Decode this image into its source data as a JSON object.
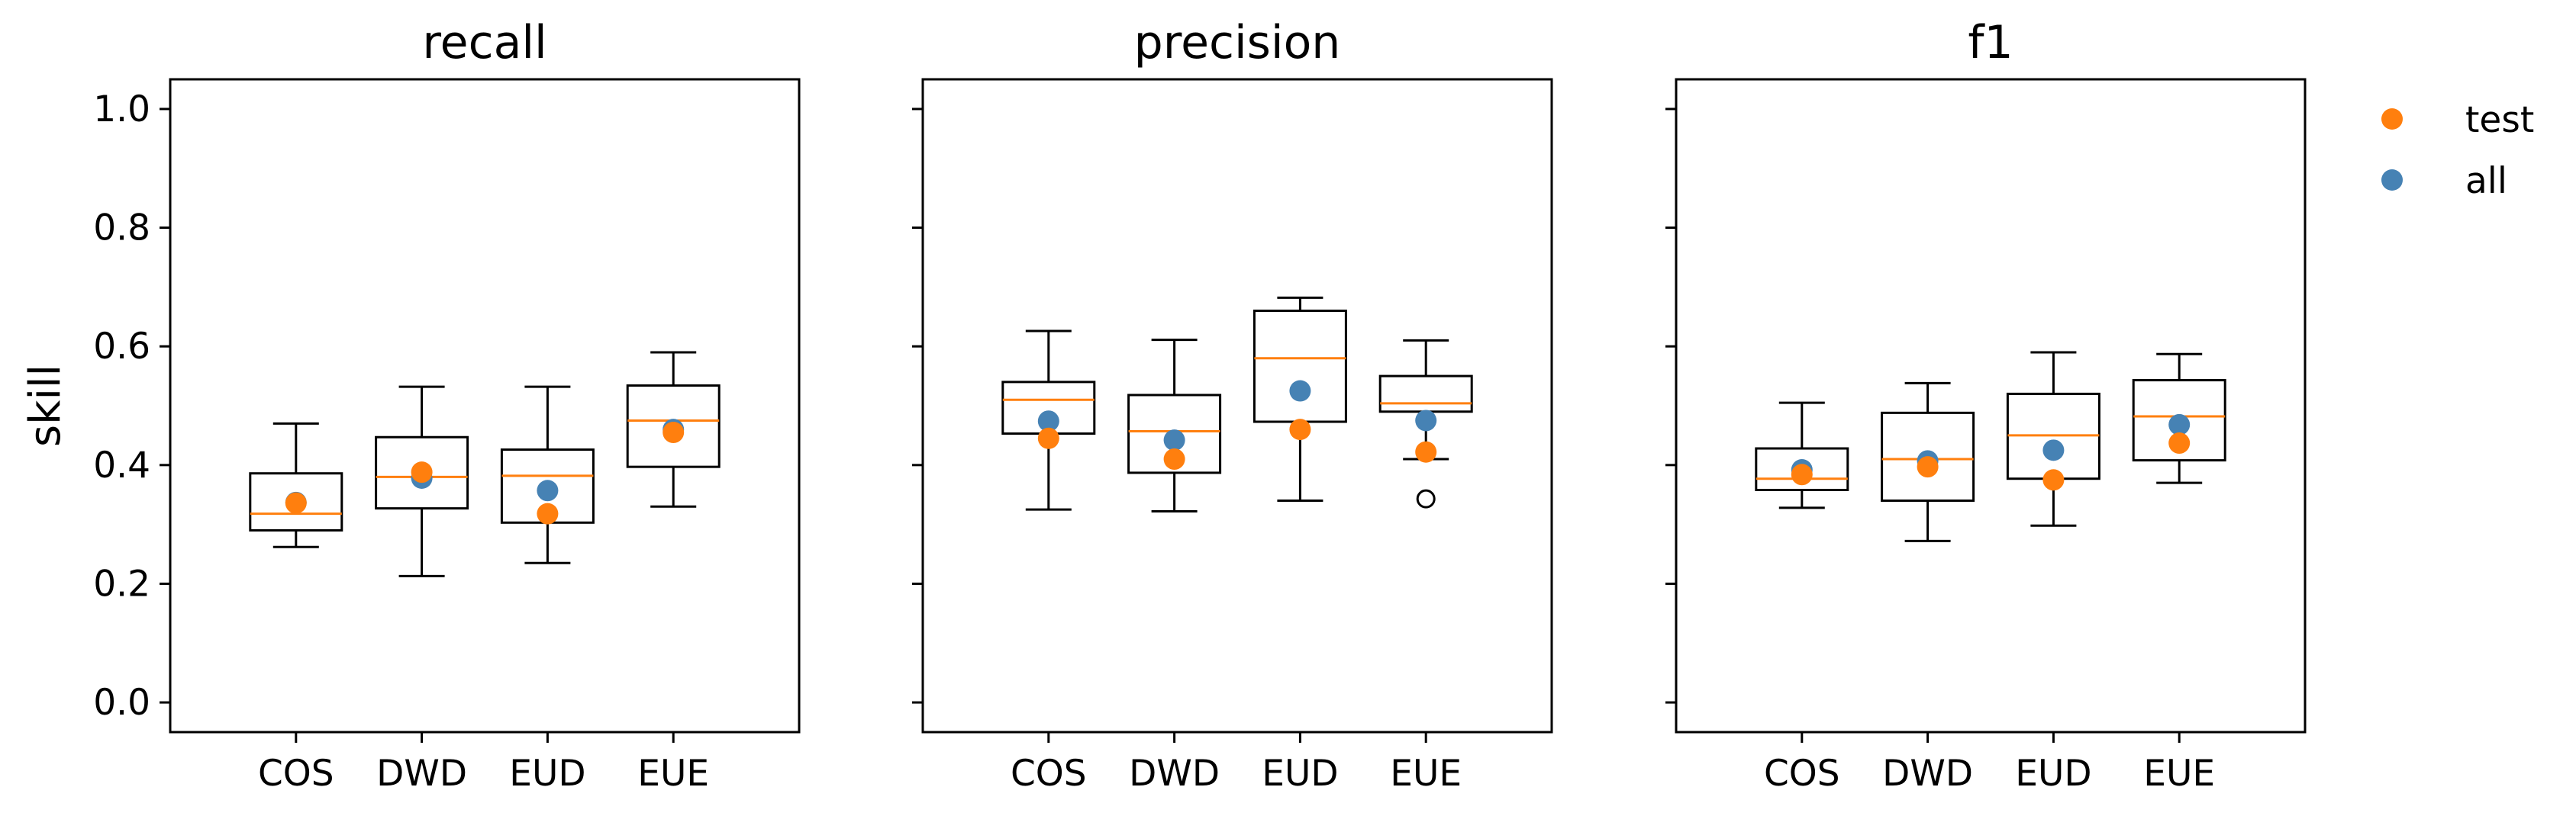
{
  "colors": {
    "test": "#ff7f0e",
    "all": "#4682b4",
    "median": "#ff7f0e",
    "box": "#000000"
  },
  "legend": {
    "placement": "right",
    "items": [
      {
        "label": "test",
        "color": "#ff7f0e",
        "marker": "circle"
      },
      {
        "label": "all",
        "color": "#4682b4",
        "marker": "circle"
      }
    ]
  },
  "chart_data": [
    {
      "type": "box",
      "title": "recall",
      "ylabel": "skill",
      "ylim": [
        -0.05,
        1.05
      ],
      "yticks": [
        "0.0",
        "0.2",
        "0.4",
        "0.6",
        "0.8",
        "1.0"
      ],
      "show_ytick_labels": true,
      "categories": [
        "COS",
        "DWD",
        "EUD",
        "EUE"
      ],
      "boxes": [
        {
          "whislo": 0.262,
          "q1": 0.29,
          "med": 0.318,
          "q3": 0.386,
          "whishi": 0.47,
          "fliers": []
        },
        {
          "whislo": 0.213,
          "q1": 0.327,
          "med": 0.38,
          "q3": 0.447,
          "whishi": 0.532,
          "fliers": []
        },
        {
          "whislo": 0.235,
          "q1": 0.303,
          "med": 0.382,
          "q3": 0.426,
          "whishi": 0.532,
          "fliers": []
        },
        {
          "whislo": 0.33,
          "q1": 0.397,
          "med": 0.475,
          "q3": 0.534,
          "whishi": 0.59,
          "fliers": []
        }
      ],
      "series": [
        {
          "name": "all",
          "values": [
            0.337,
            0.378,
            0.357,
            0.46
          ]
        },
        {
          "name": "test",
          "values": [
            0.336,
            0.388,
            0.318,
            0.455
          ]
        }
      ]
    },
    {
      "type": "box",
      "title": "precision",
      "ylabel": "",
      "ylim": [
        -0.05,
        1.05
      ],
      "yticks": [
        "0.0",
        "0.2",
        "0.4",
        "0.6",
        "0.8",
        "1.0"
      ],
      "show_ytick_labels": false,
      "categories": [
        "COS",
        "DWD",
        "EUD",
        "EUE"
      ],
      "boxes": [
        {
          "whislo": 0.325,
          "q1": 0.453,
          "med": 0.51,
          "q3": 0.54,
          "whishi": 0.626,
          "fliers": []
        },
        {
          "whislo": 0.322,
          "q1": 0.387,
          "med": 0.457,
          "q3": 0.518,
          "whishi": 0.611,
          "fliers": []
        },
        {
          "whislo": 0.34,
          "q1": 0.473,
          "med": 0.58,
          "q3": 0.66,
          "whishi": 0.682,
          "fliers": []
        },
        {
          "whislo": 0.41,
          "q1": 0.49,
          "med": 0.504,
          "q3": 0.55,
          "whishi": 0.61,
          "fliers": [
            0.343
          ]
        }
      ],
      "series": [
        {
          "name": "all",
          "values": [
            0.474,
            0.442,
            0.525,
            0.475
          ]
        },
        {
          "name": "test",
          "values": [
            0.445,
            0.41,
            0.46,
            0.422
          ]
        }
      ]
    },
    {
      "type": "box",
      "title": "f1",
      "ylabel": "",
      "ylim": [
        -0.05,
        1.05
      ],
      "yticks": [
        "0.0",
        "0.2",
        "0.4",
        "0.6",
        "0.8",
        "1.0"
      ],
      "show_ytick_labels": false,
      "categories": [
        "COS",
        "DWD",
        "EUD",
        "EUE"
      ],
      "boxes": [
        {
          "whislo": 0.328,
          "q1": 0.358,
          "med": 0.377,
          "q3": 0.428,
          "whishi": 0.505,
          "fliers": []
        },
        {
          "whislo": 0.272,
          "q1": 0.34,
          "med": 0.41,
          "q3": 0.488,
          "whishi": 0.538,
          "fliers": []
        },
        {
          "whislo": 0.298,
          "q1": 0.377,
          "med": 0.45,
          "q3": 0.52,
          "whishi": 0.59,
          "fliers": []
        },
        {
          "whislo": 0.37,
          "q1": 0.408,
          "med": 0.482,
          "q3": 0.543,
          "whishi": 0.587,
          "fliers": []
        }
      ],
      "series": [
        {
          "name": "all",
          "values": [
            0.392,
            0.407,
            0.425,
            0.468
          ]
        },
        {
          "name": "test",
          "values": [
            0.384,
            0.397,
            0.375,
            0.437
          ]
        }
      ]
    }
  ]
}
